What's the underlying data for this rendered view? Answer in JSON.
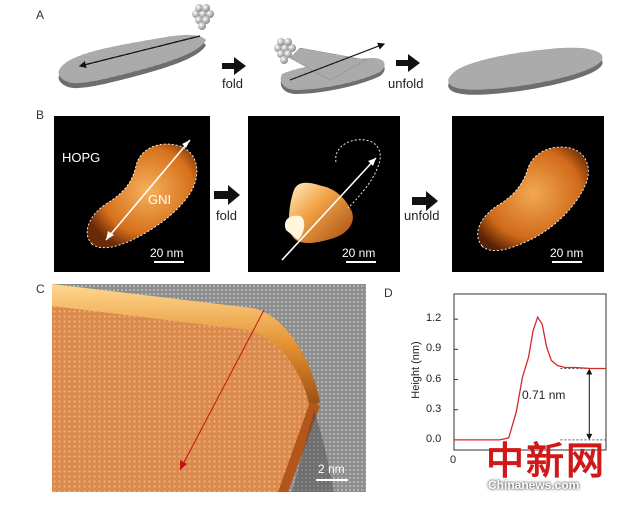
{
  "panels": {
    "a": {
      "letter": "A",
      "step_fold": "fold",
      "step_unfold": "unfold"
    },
    "b": {
      "letter": "B",
      "label_substrate": "HOPG",
      "label_ribbon": "GNI",
      "scale_1": "20 nm",
      "scale_2": "20 nm",
      "scale_3": "20 nm",
      "step_fold": "fold",
      "step_unfold": "unfold"
    },
    "c": {
      "letter": "C",
      "scale": "2 nm"
    },
    "d": {
      "letter": "D",
      "annotation": "0.71 nm"
    }
  },
  "chart_data": {
    "type": "line",
    "ylabel": "Height (nm)",
    "xlabel": "",
    "y_ticks": [
      "0.0",
      "0.3",
      "0.6",
      "0.9",
      "1.2"
    ],
    "x_ticks": [
      "0"
    ],
    "ylim": [
      -0.1,
      1.45
    ],
    "xlim": [
      0,
      10
    ],
    "series": [
      {
        "color": "#d42a2a",
        "x": [
          0,
          1,
          2,
          3,
          3.6,
          4.1,
          4.5,
          4.9,
          5.2,
          5.5,
          5.8,
          6.1,
          6.4,
          6.8,
          7.3,
          8,
          9,
          10
        ],
        "y": [
          0.0,
          0.0,
          0.0,
          0.0,
          0.02,
          0.28,
          0.62,
          0.82,
          1.08,
          1.22,
          1.15,
          0.92,
          0.79,
          0.74,
          0.72,
          0.72,
          0.71,
          0.71
        ]
      }
    ],
    "reference_levels": [
      0.0,
      0.71
    ],
    "annotations": [
      "0.71 nm"
    ]
  },
  "watermark": {
    "chinese": "中新网",
    "site": "Chinanews.com"
  },
  "colors": {
    "afm_dark": "#000000",
    "afm_orange": "#e0802a",
    "afm_highlight": "#ffe6a8",
    "profile_red": "#d42a2a",
    "model_gray": "#9a9a9a"
  }
}
